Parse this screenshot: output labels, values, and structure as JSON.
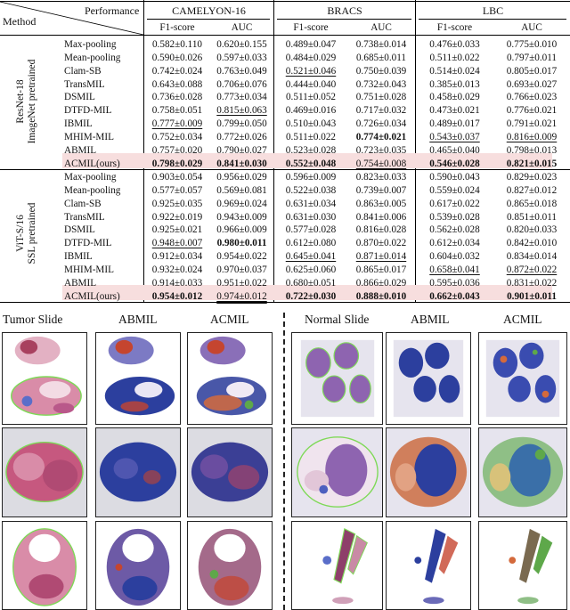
{
  "table": {
    "corner": {
      "top": "Performance",
      "bottom": "Method"
    },
    "datasets": [
      "CAMELYON-16",
      "BRACS",
      "LBC"
    ],
    "metrics": [
      "F1-score",
      "AUC"
    ],
    "groups": [
      {
        "label_line1": "ResNet-18",
        "label_line2": "ImageNet pretrained",
        "rows": [
          {
            "method": "Max-pooling",
            "values": [
              "0.582±0.110",
              "0.620±0.155",
              "0.489±0.047",
              "0.738±0.014",
              "0.476±0.033",
              "0.775±0.010"
            ],
            "styles": [
              "",
              "",
              "",
              "",
              "",
              ""
            ]
          },
          {
            "method": "Mean-pooling",
            "values": [
              "0.590±0.026",
              "0.597±0.033",
              "0.484±0.029",
              "0.685±0.011",
              "0.511±0.022",
              "0.797±0.011"
            ],
            "styles": [
              "",
              "",
              "",
              "",
              "",
              ""
            ]
          },
          {
            "method": "Clam-SB",
            "values": [
              "0.742±0.024",
              "0.763±0.049",
              "0.521±0.046",
              "0.750±0.039",
              "0.514±0.024",
              "0.805±0.017"
            ],
            "styles": [
              "",
              "",
              "u",
              "",
              "",
              ""
            ]
          },
          {
            "method": "TransMIL",
            "values": [
              "0.643±0.088",
              "0.706±0.076",
              "0.444±0.040",
              "0.732±0.043",
              "0.385±0.013",
              "0.693±0.027"
            ],
            "styles": [
              "",
              "",
              "",
              "",
              "",
              ""
            ]
          },
          {
            "method": "DSMIL",
            "values": [
              "0.736±0.028",
              "0.773±0.034",
              "0.511±0.052",
              "0.751±0.028",
              "0.458±0.029",
              "0.766±0.023"
            ],
            "styles": [
              "",
              "",
              "",
              "",
              "",
              ""
            ]
          },
          {
            "method": "DTFD-MIL",
            "values": [
              "0.758±0.051",
              "0.815±0.063",
              "0.469±0.016",
              "0.717±0.032",
              "0.473±0.021",
              "0.776±0.021"
            ],
            "styles": [
              "",
              "u",
              "",
              "",
              "",
              ""
            ]
          },
          {
            "method": "IBMIL",
            "values": [
              "0.777±0.009",
              "0.799±0.050",
              "0.510±0.043",
              "0.726±0.034",
              "0.489±0.017",
              "0.791±0.021"
            ],
            "styles": [
              "u",
              "",
              "",
              "",
              "",
              ""
            ]
          },
          {
            "method": "MHIM-MIL",
            "values": [
              "0.752±0.034",
              "0.772±0.026",
              "0.511±0.022",
              "0.774±0.021",
              "0.543±0.037",
              "0.816±0.009"
            ],
            "styles": [
              "",
              "",
              "",
              "b",
              "u",
              "u"
            ]
          },
          {
            "method": "ABMIL",
            "values": [
              "0.757±0.020",
              "0.790±0.027",
              "0.523±0.028",
              "0.723±0.035",
              "0.465±0.040",
              "0.798±0.013"
            ],
            "styles": [
              "",
              "",
              "",
              "",
              "",
              ""
            ]
          },
          {
            "method": "ACMIL(ours)",
            "highlight": true,
            "values": [
              "0.798±0.029",
              "0.841±0.030",
              "0.552±0.048",
              "0.754±0.008",
              "0.546±0.028",
              "0.821±0.015"
            ],
            "styles": [
              "b",
              "b",
              "b",
              "u",
              "b",
              "b"
            ]
          }
        ]
      },
      {
        "label_line1": "ViT-S/16",
        "label_line2": "SSL pretrained",
        "rows": [
          {
            "method": "Max-pooling",
            "values": [
              "0.903±0.054",
              "0.956±0.029",
              "0.596±0.009",
              "0.823±0.033",
              "0.590±0.043",
              "0.829±0.023"
            ],
            "styles": [
              "",
              "",
              "",
              "",
              "",
              ""
            ]
          },
          {
            "method": "Mean-pooling",
            "values": [
              "0.577±0.057",
              "0.569±0.081",
              "0.522±0.038",
              "0.739±0.007",
              "0.559±0.024",
              "0.827±0.012"
            ],
            "styles": [
              "",
              "",
              "",
              "",
              "",
              ""
            ]
          },
          {
            "method": "Clam-SB",
            "values": [
              "0.925±0.035",
              "0.969±0.024",
              "0.631±0.034",
              "0.863±0.005",
              "0.617±0.022",
              "0.865±0.018"
            ],
            "styles": [
              "",
              "",
              "",
              "",
              "",
              ""
            ]
          },
          {
            "method": "TransMIL",
            "values": [
              "0.922±0.019",
              "0.943±0.009",
              "0.631±0.030",
              "0.841±0.006",
              "0.539±0.028",
              "0.851±0.011"
            ],
            "styles": [
              "",
              "",
              "",
              "",
              "",
              ""
            ]
          },
          {
            "method": "DSMIL",
            "values": [
              "0.925±0.021",
              "0.966±0.009",
              "0.577±0.028",
              "0.816±0.028",
              "0.562±0.028",
              "0.820±0.033"
            ],
            "styles": [
              "",
              "",
              "",
              "",
              "",
              ""
            ]
          },
          {
            "method": "DTFD-MIL",
            "values": [
              "0.948±0.007",
              "0.980±0.011",
              "0.612±0.080",
              "0.870±0.022",
              "0.612±0.034",
              "0.842±0.010"
            ],
            "styles": [
              "u",
              "b",
              "",
              "",
              "",
              ""
            ]
          },
          {
            "method": "IBMIL",
            "values": [
              "0.912±0.034",
              "0.954±0.022",
              "0.645±0.041",
              "0.871±0.014",
              "0.604±0.032",
              "0.834±0.014"
            ],
            "styles": [
              "",
              "",
              "u",
              "u",
              "",
              ""
            ]
          },
          {
            "method": "MHIM-MIL",
            "values": [
              "0.932±0.024",
              "0.970±0.037",
              "0.625±0.060",
              "0.865±0.017",
              "0.658±0.041",
              "0.872±0.022"
            ],
            "styles": [
              "",
              "",
              "",
              "",
              "u",
              "u"
            ]
          },
          {
            "method": "ABMIL",
            "values": [
              "0.914±0.033",
              "0.951±0.022",
              "0.680±0.051",
              "0.866±0.029",
              "0.595±0.036",
              "0.831±0.022"
            ],
            "styles": [
              "",
              "",
              "",
              "",
              "",
              ""
            ]
          },
          {
            "method": "ACMIL(ours)",
            "highlight": true,
            "values": [
              "0.954±0.012",
              "0.974±0.012",
              "0.722±0.030",
              "0.888±0.010",
              "0.662±0.043",
              "0.901±0.011"
            ],
            "styles": [
              "b",
              "uu",
              "b",
              "b",
              "b",
              "b"
            ]
          }
        ]
      }
    ]
  },
  "figure": {
    "left_titles": [
      "Tumor Slide",
      "ABMIL",
      "ACMIL"
    ],
    "right_titles": [
      "Normal Slide",
      "ABMIL",
      "ACMIL"
    ],
    "colors": {
      "tissue_pink": "#d98ca8",
      "tissue_purple": "#6b4fa3",
      "heat_blue": "#2c3f9e",
      "heat_red": "#c5452f",
      "heat_green": "#5ea84a",
      "outline_green": "#7ed957",
      "bg_gray": "#dcdce2"
    }
  }
}
